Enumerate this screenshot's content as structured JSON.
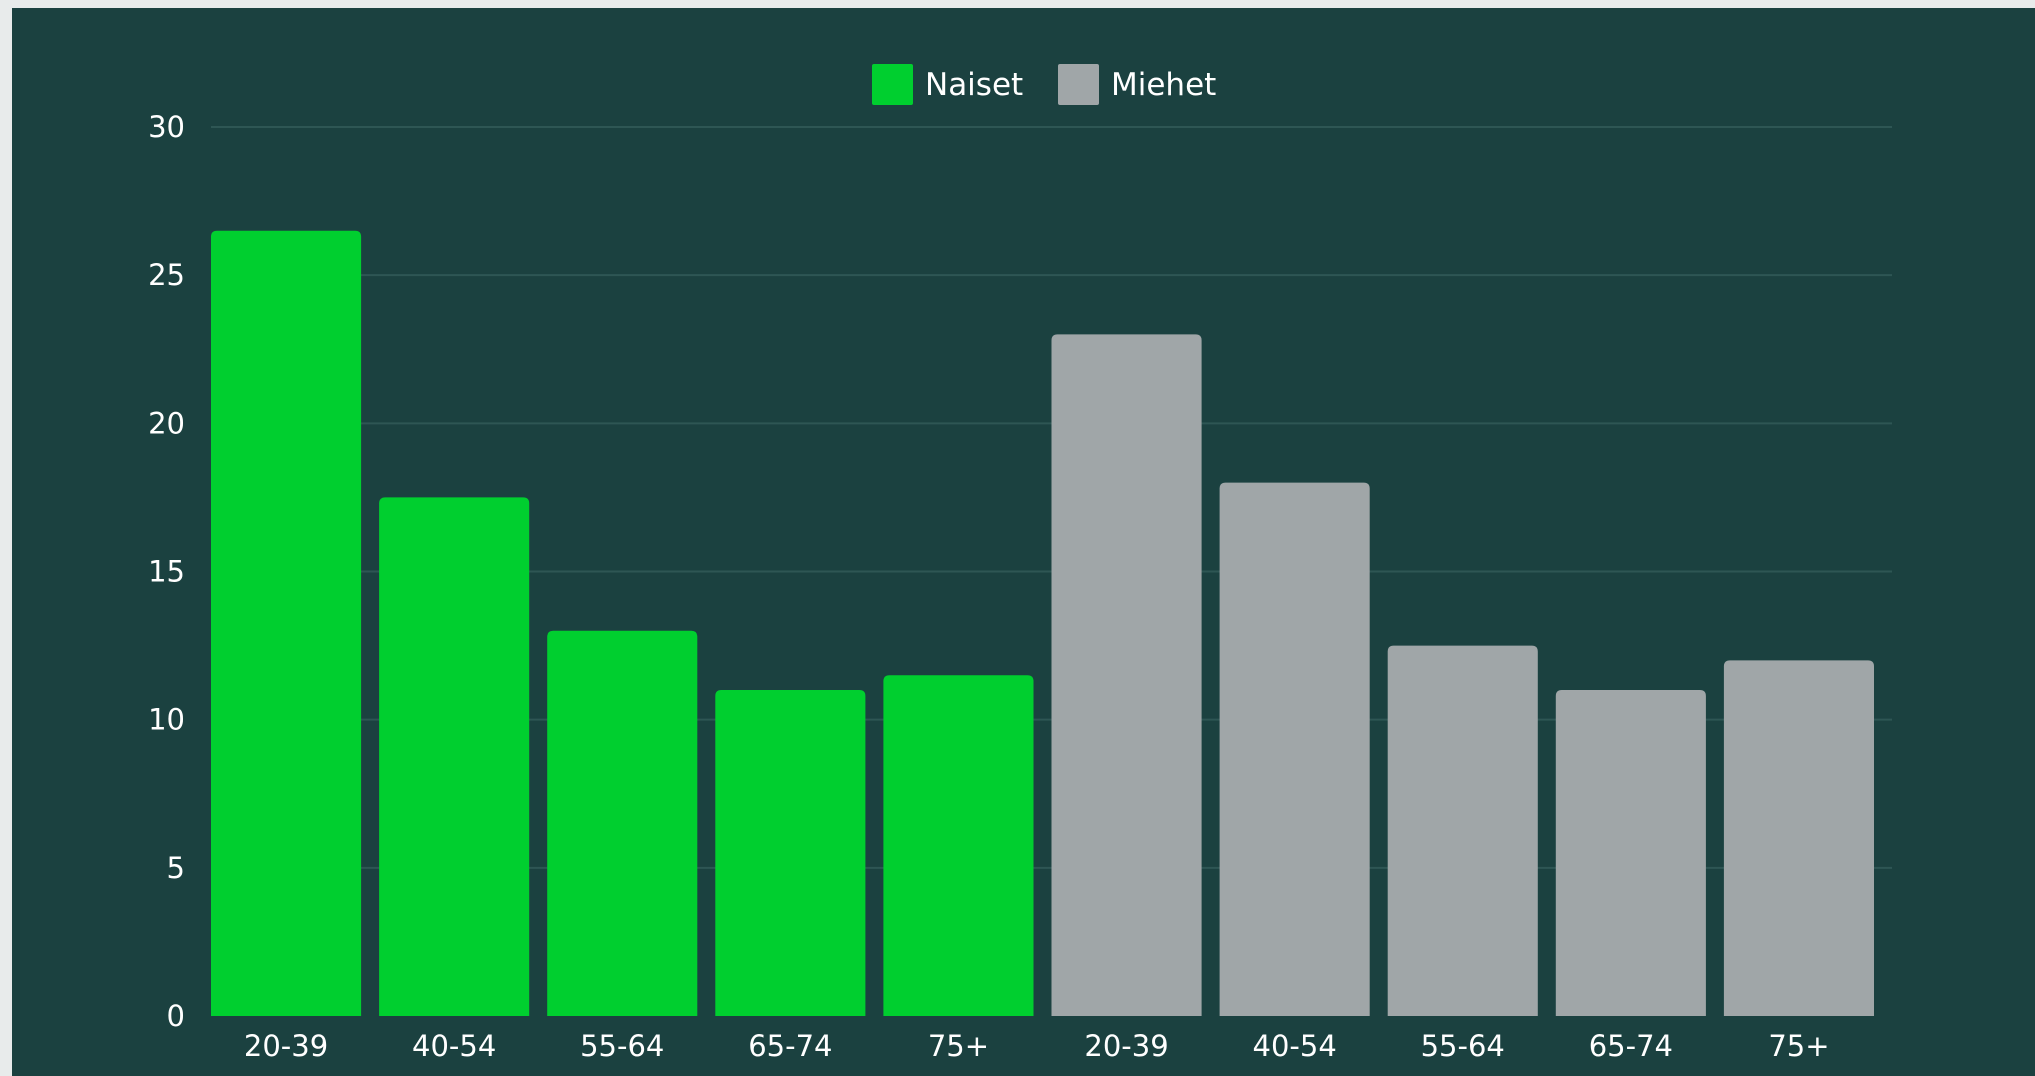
{
  "chart_data": {
    "type": "bar",
    "title": "",
    "xlabel": "",
    "ylabel": "",
    "ylim": [
      0,
      30
    ],
    "yticks": [
      0,
      5,
      10,
      15,
      20,
      25,
      30
    ],
    "grid": true,
    "legend": "top-center",
    "series": [
      {
        "name": "Naiset",
        "color": "#00cf2f",
        "categories": [
          "20-39",
          "40-54",
          "55-64",
          "65-74",
          "75+"
        ],
        "values": [
          26.5,
          17.5,
          13,
          11,
          11.5
        ]
      },
      {
        "name": "Miehet",
        "color": "#a0a6a8",
        "categories": [
          "20-39",
          "40-54",
          "55-64",
          "65-74",
          "75+"
        ],
        "values": [
          23,
          18,
          12.5,
          11,
          12
        ]
      }
    ]
  },
  "colors": {
    "background": "#1b4140",
    "page": "#e8ebeb",
    "gridline": "#2e5654",
    "text": "#ffffff"
  }
}
